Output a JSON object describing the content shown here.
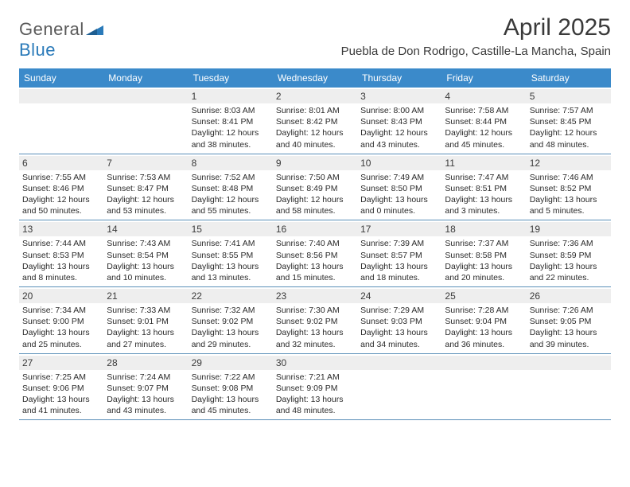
{
  "logo": {
    "text1": "General",
    "text2": "Blue"
  },
  "title": "April 2025",
  "location": "Puebla de Don Rodrigo, Castille-La Mancha, Spain",
  "colors": {
    "header_bg": "#3b8aca",
    "header_text": "#ffffff",
    "daynum_bg": "#eeeeee",
    "row_border": "#5a8fb8",
    "text": "#2a2a2a",
    "title_text": "#3a3a3a",
    "logo_gray": "#5a5a5a",
    "logo_blue": "#2a7ab9"
  },
  "weekdays": [
    "Sunday",
    "Monday",
    "Tuesday",
    "Wednesday",
    "Thursday",
    "Friday",
    "Saturday"
  ],
  "weeks": [
    [
      {
        "n": "",
        "sr": "",
        "ss": "",
        "d1": "",
        "d2": ""
      },
      {
        "n": "",
        "sr": "",
        "ss": "",
        "d1": "",
        "d2": ""
      },
      {
        "n": "1",
        "sr": "Sunrise: 8:03 AM",
        "ss": "Sunset: 8:41 PM",
        "d1": "Daylight: 12 hours",
        "d2": "and 38 minutes."
      },
      {
        "n": "2",
        "sr": "Sunrise: 8:01 AM",
        "ss": "Sunset: 8:42 PM",
        "d1": "Daylight: 12 hours",
        "d2": "and 40 minutes."
      },
      {
        "n": "3",
        "sr": "Sunrise: 8:00 AM",
        "ss": "Sunset: 8:43 PM",
        "d1": "Daylight: 12 hours",
        "d2": "and 43 minutes."
      },
      {
        "n": "4",
        "sr": "Sunrise: 7:58 AM",
        "ss": "Sunset: 8:44 PM",
        "d1": "Daylight: 12 hours",
        "d2": "and 45 minutes."
      },
      {
        "n": "5",
        "sr": "Sunrise: 7:57 AM",
        "ss": "Sunset: 8:45 PM",
        "d1": "Daylight: 12 hours",
        "d2": "and 48 minutes."
      }
    ],
    [
      {
        "n": "6",
        "sr": "Sunrise: 7:55 AM",
        "ss": "Sunset: 8:46 PM",
        "d1": "Daylight: 12 hours",
        "d2": "and 50 minutes."
      },
      {
        "n": "7",
        "sr": "Sunrise: 7:53 AM",
        "ss": "Sunset: 8:47 PM",
        "d1": "Daylight: 12 hours",
        "d2": "and 53 minutes."
      },
      {
        "n": "8",
        "sr": "Sunrise: 7:52 AM",
        "ss": "Sunset: 8:48 PM",
        "d1": "Daylight: 12 hours",
        "d2": "and 55 minutes."
      },
      {
        "n": "9",
        "sr": "Sunrise: 7:50 AM",
        "ss": "Sunset: 8:49 PM",
        "d1": "Daylight: 12 hours",
        "d2": "and 58 minutes."
      },
      {
        "n": "10",
        "sr": "Sunrise: 7:49 AM",
        "ss": "Sunset: 8:50 PM",
        "d1": "Daylight: 13 hours",
        "d2": "and 0 minutes."
      },
      {
        "n": "11",
        "sr": "Sunrise: 7:47 AM",
        "ss": "Sunset: 8:51 PM",
        "d1": "Daylight: 13 hours",
        "d2": "and 3 minutes."
      },
      {
        "n": "12",
        "sr": "Sunrise: 7:46 AM",
        "ss": "Sunset: 8:52 PM",
        "d1": "Daylight: 13 hours",
        "d2": "and 5 minutes."
      }
    ],
    [
      {
        "n": "13",
        "sr": "Sunrise: 7:44 AM",
        "ss": "Sunset: 8:53 PM",
        "d1": "Daylight: 13 hours",
        "d2": "and 8 minutes."
      },
      {
        "n": "14",
        "sr": "Sunrise: 7:43 AM",
        "ss": "Sunset: 8:54 PM",
        "d1": "Daylight: 13 hours",
        "d2": "and 10 minutes."
      },
      {
        "n": "15",
        "sr": "Sunrise: 7:41 AM",
        "ss": "Sunset: 8:55 PM",
        "d1": "Daylight: 13 hours",
        "d2": "and 13 minutes."
      },
      {
        "n": "16",
        "sr": "Sunrise: 7:40 AM",
        "ss": "Sunset: 8:56 PM",
        "d1": "Daylight: 13 hours",
        "d2": "and 15 minutes."
      },
      {
        "n": "17",
        "sr": "Sunrise: 7:39 AM",
        "ss": "Sunset: 8:57 PM",
        "d1": "Daylight: 13 hours",
        "d2": "and 18 minutes."
      },
      {
        "n": "18",
        "sr": "Sunrise: 7:37 AM",
        "ss": "Sunset: 8:58 PM",
        "d1": "Daylight: 13 hours",
        "d2": "and 20 minutes."
      },
      {
        "n": "19",
        "sr": "Sunrise: 7:36 AM",
        "ss": "Sunset: 8:59 PM",
        "d1": "Daylight: 13 hours",
        "d2": "and 22 minutes."
      }
    ],
    [
      {
        "n": "20",
        "sr": "Sunrise: 7:34 AM",
        "ss": "Sunset: 9:00 PM",
        "d1": "Daylight: 13 hours",
        "d2": "and 25 minutes."
      },
      {
        "n": "21",
        "sr": "Sunrise: 7:33 AM",
        "ss": "Sunset: 9:01 PM",
        "d1": "Daylight: 13 hours",
        "d2": "and 27 minutes."
      },
      {
        "n": "22",
        "sr": "Sunrise: 7:32 AM",
        "ss": "Sunset: 9:02 PM",
        "d1": "Daylight: 13 hours",
        "d2": "and 29 minutes."
      },
      {
        "n": "23",
        "sr": "Sunrise: 7:30 AM",
        "ss": "Sunset: 9:02 PM",
        "d1": "Daylight: 13 hours",
        "d2": "and 32 minutes."
      },
      {
        "n": "24",
        "sr": "Sunrise: 7:29 AM",
        "ss": "Sunset: 9:03 PM",
        "d1": "Daylight: 13 hours",
        "d2": "and 34 minutes."
      },
      {
        "n": "25",
        "sr": "Sunrise: 7:28 AM",
        "ss": "Sunset: 9:04 PM",
        "d1": "Daylight: 13 hours",
        "d2": "and 36 minutes."
      },
      {
        "n": "26",
        "sr": "Sunrise: 7:26 AM",
        "ss": "Sunset: 9:05 PM",
        "d1": "Daylight: 13 hours",
        "d2": "and 39 minutes."
      }
    ],
    [
      {
        "n": "27",
        "sr": "Sunrise: 7:25 AM",
        "ss": "Sunset: 9:06 PM",
        "d1": "Daylight: 13 hours",
        "d2": "and 41 minutes."
      },
      {
        "n": "28",
        "sr": "Sunrise: 7:24 AM",
        "ss": "Sunset: 9:07 PM",
        "d1": "Daylight: 13 hours",
        "d2": "and 43 minutes."
      },
      {
        "n": "29",
        "sr": "Sunrise: 7:22 AM",
        "ss": "Sunset: 9:08 PM",
        "d1": "Daylight: 13 hours",
        "d2": "and 45 minutes."
      },
      {
        "n": "30",
        "sr": "Sunrise: 7:21 AM",
        "ss": "Sunset: 9:09 PM",
        "d1": "Daylight: 13 hours",
        "d2": "and 48 minutes."
      },
      {
        "n": "",
        "sr": "",
        "ss": "",
        "d1": "",
        "d2": ""
      },
      {
        "n": "",
        "sr": "",
        "ss": "",
        "d1": "",
        "d2": ""
      },
      {
        "n": "",
        "sr": "",
        "ss": "",
        "d1": "",
        "d2": ""
      }
    ]
  ]
}
